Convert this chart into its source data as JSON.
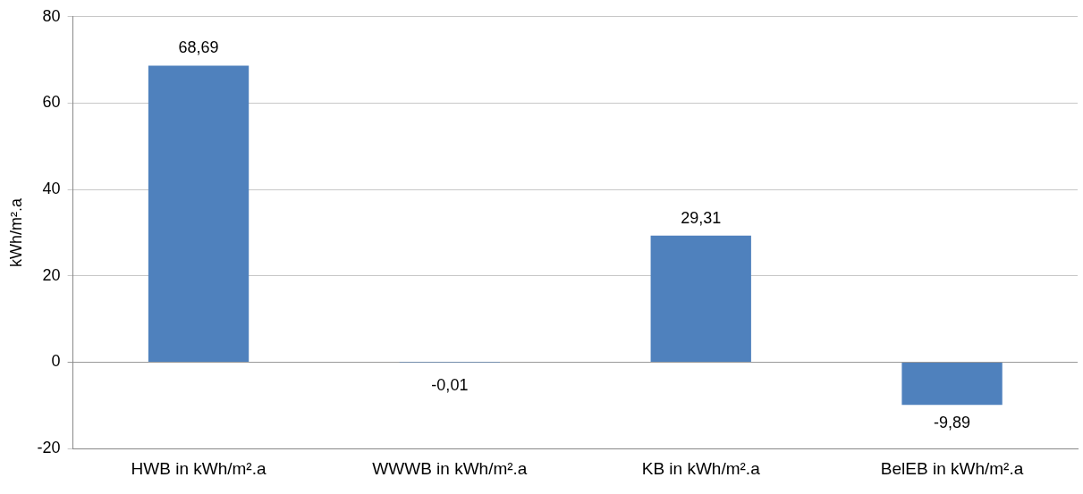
{
  "chart_data": {
    "type": "bar",
    "ylabel": "kWh/m².a",
    "categories": [
      "HWB in kWh/m².a",
      "WWWB in kWh/m².a",
      "KB in kWh/m².a",
      "BelEB in kWh/m².a"
    ],
    "values": [
      68.69,
      -0.01,
      29.31,
      -9.89
    ],
    "value_labels": [
      "68,69",
      "-0,01",
      "29,31",
      "-9,89"
    ],
    "color": "#4f81bd",
    "ylim": [
      -20,
      80
    ],
    "yticks": [
      -20,
      0,
      20,
      40,
      60,
      80
    ],
    "grid": "y",
    "legend": false
  }
}
